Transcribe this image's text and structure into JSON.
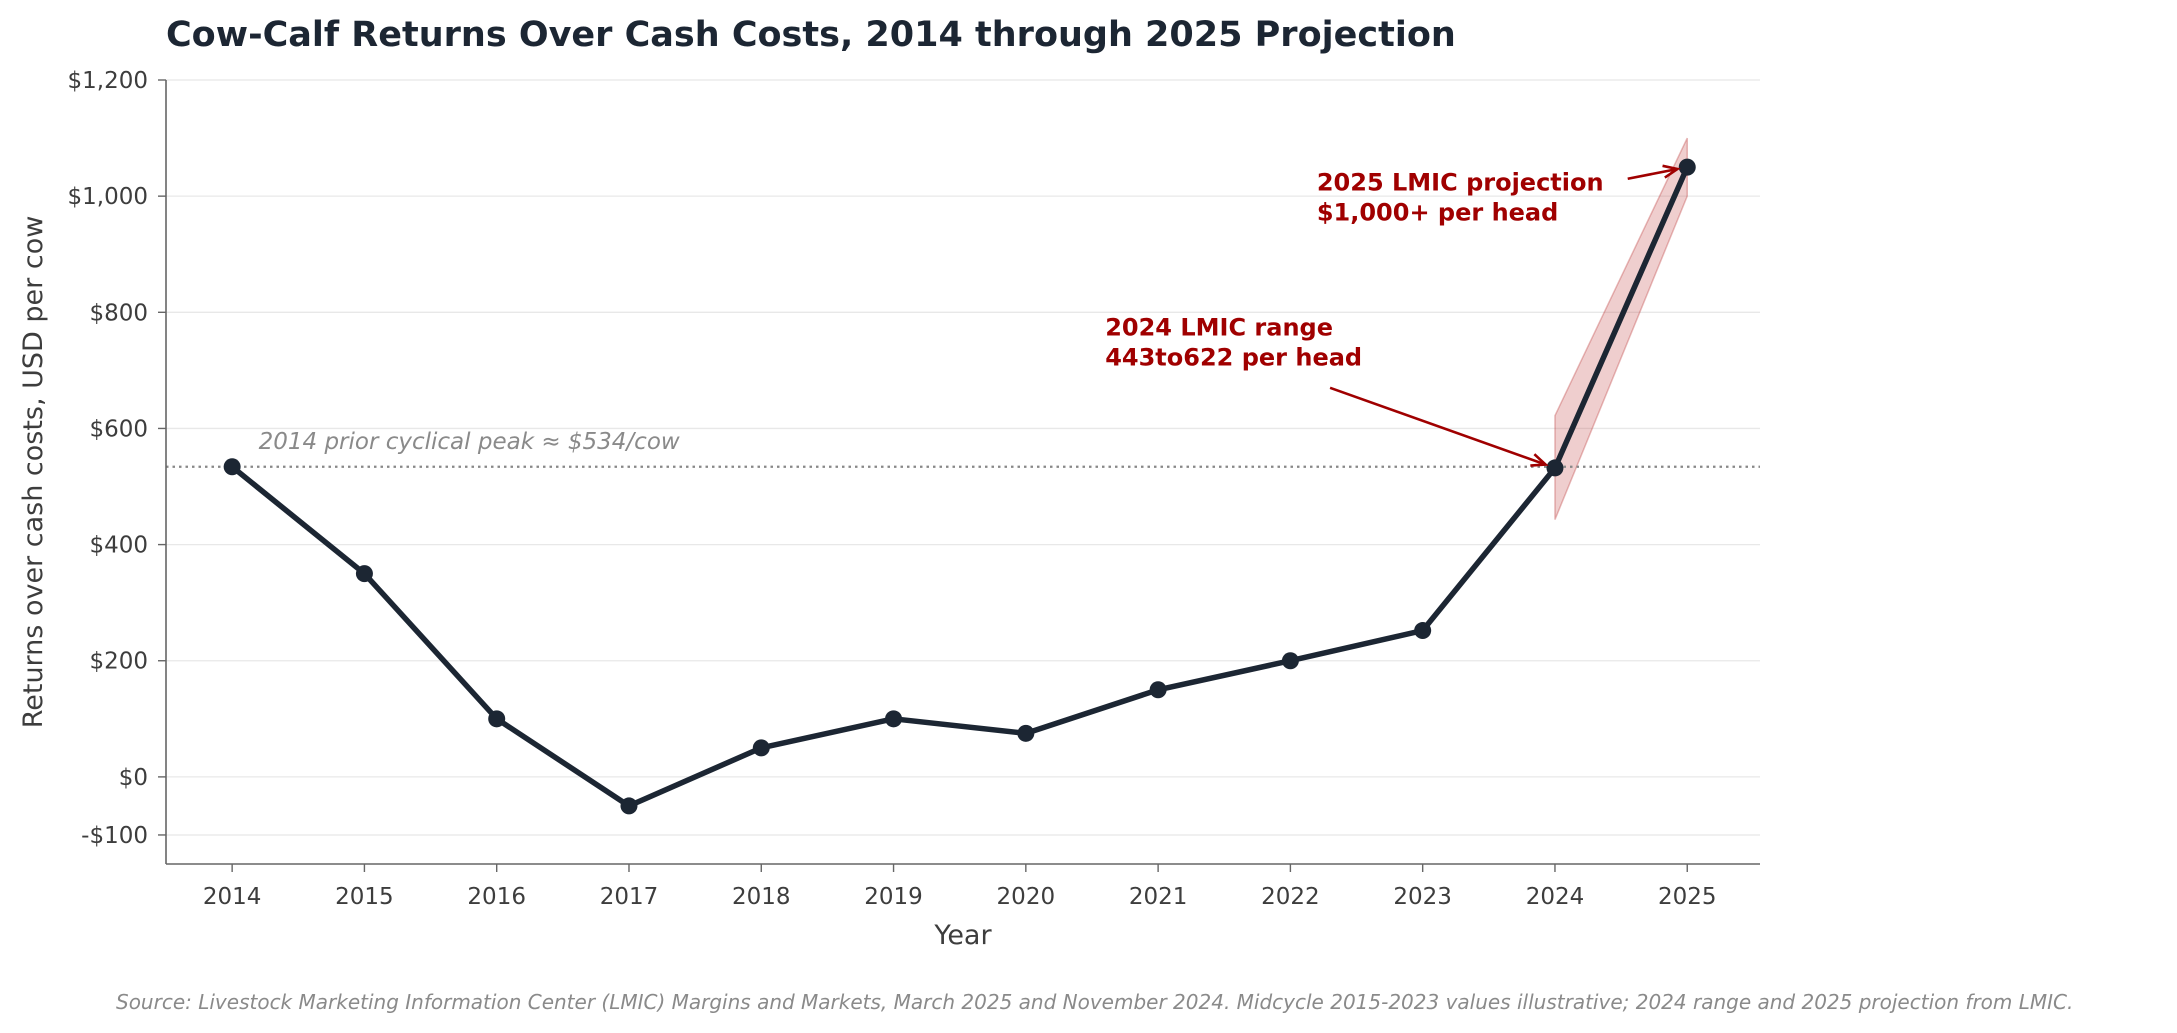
{
  "chart_data": {
    "type": "line",
    "title": "Cow-Calf Returns Over Cash Costs, 2014 through 2025 Projection",
    "xlabel": "Year",
    "ylabel": "Returns over cash costs, USD per cow",
    "x": [
      2014,
      2015,
      2016,
      2017,
      2018,
      2019,
      2020,
      2021,
      2022,
      2023,
      2024,
      2025
    ],
    "values": [
      534,
      350,
      100,
      -50,
      50,
      100,
      75,
      150,
      200,
      252,
      532,
      1050
    ],
    "xlim": [
      2013.5,
      2025.55
    ],
    "ylim": [
      -150,
      1200
    ],
    "yticks": [
      -100,
      0,
      200,
      400,
      600,
      800,
      1000,
      1200
    ],
    "ytick_labels": [
      "-$100",
      "$0",
      "$200",
      "$400",
      "$600",
      "$800",
      "$1,000",
      "$1,200"
    ],
    "xtick_labels": [
      "2014",
      "2015",
      "2016",
      "2017",
      "2018",
      "2019",
      "2020",
      "2021",
      "2022",
      "2023",
      "2024",
      "2025"
    ],
    "range_band": [
      {
        "x": 2024,
        "low": 443,
        "high": 622
      },
      {
        "x": 2025,
        "low": 1000,
        "high": 1100
      }
    ],
    "reference_line": {
      "y": 534,
      "label": "2014 prior cyclical peak ≈ $534/cow"
    },
    "annotations": [
      {
        "x": 2024,
        "y": 532,
        "lines": [
          "2024 LMIC range",
          "443to622 per head"
        ],
        "text_x": 2020.6,
        "text_y": 760
      },
      {
        "x": 2025,
        "y": 1050,
        "lines": [
          "2025 LMIC projection",
          "$1,000+ per head"
        ],
        "text_x": 2022.2,
        "text_y": 1010
      }
    ],
    "grid": "horizontal",
    "legend": "none"
  },
  "source": "Source: Livestock Marketing Information Center (LMIC) Margins and Markets, March 2025 and November 2024. Midcycle 2015-2023 values illustrative; 2024 range and 2025 projection from LMIC."
}
